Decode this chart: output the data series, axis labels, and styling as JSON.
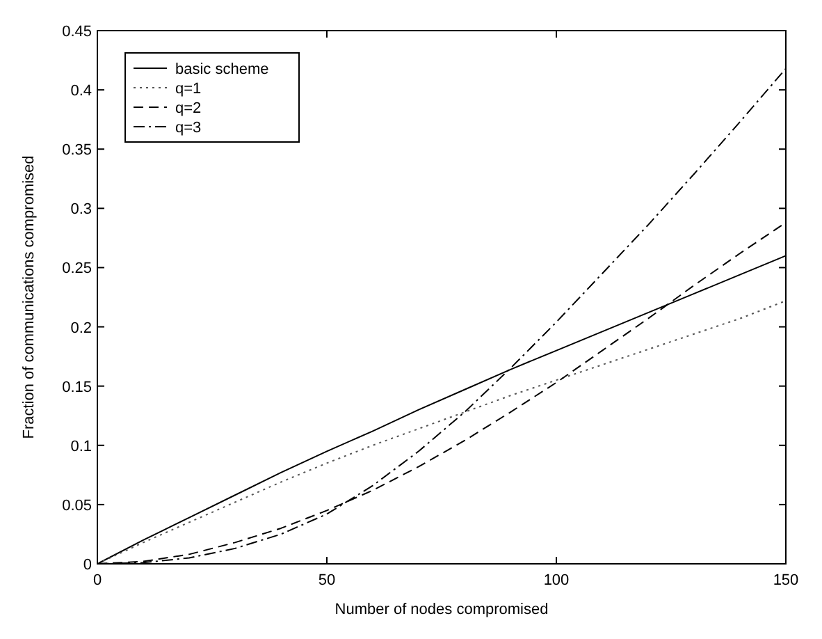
{
  "chart_data": {
    "type": "line",
    "xlabel": "Number of nodes compromised",
    "ylabel": "Fraction of communications compromised",
    "x": [
      0,
      10,
      20,
      30,
      40,
      50,
      60,
      70,
      80,
      90,
      100,
      110,
      120,
      130,
      140,
      150
    ],
    "series": [
      {
        "name": "basic scheme",
        "color": "#000000",
        "line_style": "solid",
        "values": [
          0,
          0.02,
          0.039,
          0.058,
          0.077,
          0.095,
          0.112,
          0.13,
          0.147,
          0.164,
          0.18,
          0.196,
          0.212,
          0.228,
          0.244,
          0.26
        ]
      },
      {
        "name": "q=1",
        "color": "#555555",
        "line_style": "dotted",
        "values": [
          0,
          0.018,
          0.035,
          0.052,
          0.069,
          0.085,
          0.1,
          0.114,
          0.128,
          0.142,
          0.155,
          0.168,
          0.181,
          0.194,
          0.207,
          0.222
        ]
      },
      {
        "name": "q=2",
        "color": "#000000",
        "line_style": "dashed",
        "values": [
          0,
          0.002,
          0.008,
          0.018,
          0.03,
          0.045,
          0.062,
          0.082,
          0.104,
          0.128,
          0.153,
          0.18,
          0.207,
          0.235,
          0.262,
          0.288
        ]
      },
      {
        "name": "q=3",
        "color": "#000000",
        "line_style": "dashdot",
        "values": [
          0,
          0.001,
          0.005,
          0.013,
          0.025,
          0.042,
          0.066,
          0.095,
          0.128,
          0.165,
          0.204,
          0.245,
          0.286,
          0.329,
          0.373,
          0.418
        ]
      }
    ],
    "xlim": [
      0,
      150
    ],
    "xticks": [
      0,
      50,
      100,
      150
    ],
    "ylim": [
      0,
      0.45
    ],
    "yticks": [
      0,
      0.05,
      0.1,
      0.15,
      0.2,
      0.25,
      0.3,
      0.35,
      0.4,
      0.45
    ],
    "grid": false,
    "legend": "top left"
  }
}
